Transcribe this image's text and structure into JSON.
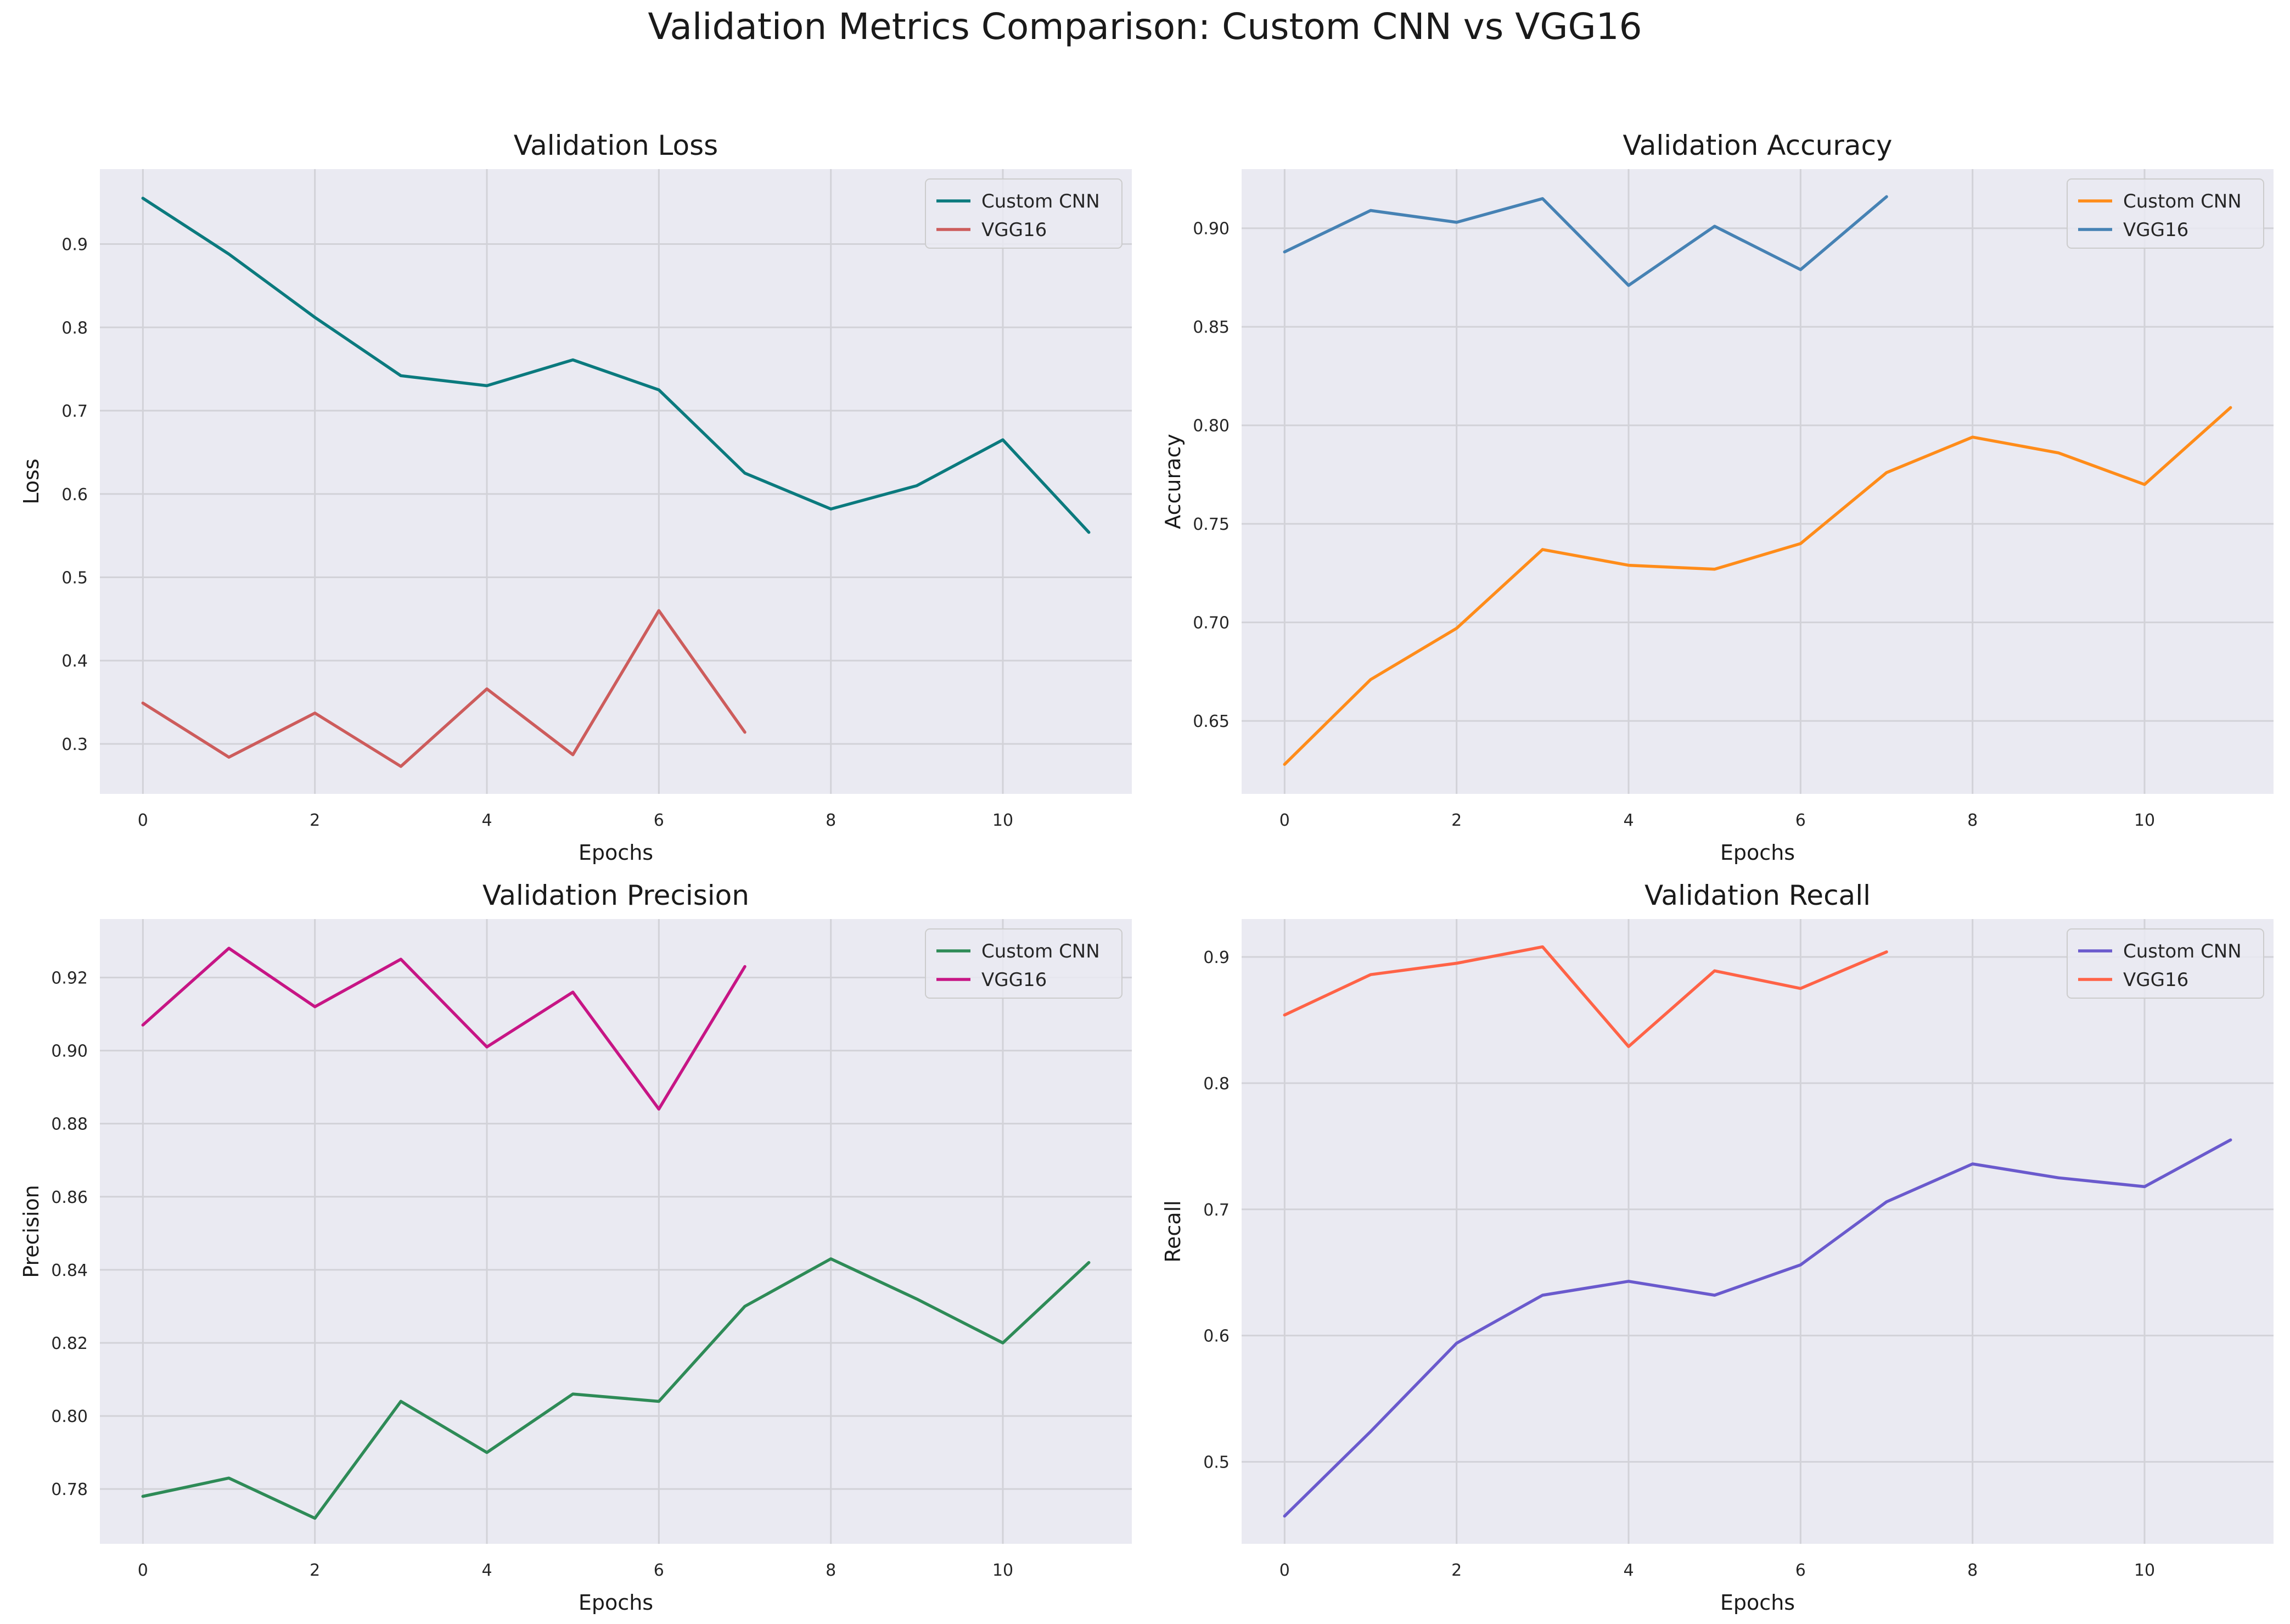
{
  "figure": {
    "title": "Validation Metrics Comparison: Custom CNN vs VGG16"
  },
  "chart_data": [
    {
      "type": "line",
      "title": "Validation Loss",
      "xlabel": "Epochs",
      "ylabel": "Loss",
      "xlim": [
        -0.5,
        11.5
      ],
      "ylim": [
        0.24,
        0.99
      ],
      "xticks": [
        0,
        2,
        4,
        6,
        8,
        10
      ],
      "yticks": [
        0.3,
        0.4,
        0.5,
        0.6,
        0.7,
        0.8,
        0.9
      ],
      "grid": true,
      "legend": "top-right",
      "series": [
        {
          "name": "Custom CNN",
          "color": "#0b7a7e",
          "x": [
            0,
            1,
            2,
            3,
            4,
            5,
            6,
            7,
            8,
            9,
            10,
            11
          ],
          "values": [
            0.955,
            0.888,
            0.812,
            0.742,
            0.73,
            0.761,
            0.725,
            0.625,
            0.582,
            0.61,
            0.665,
            0.554
          ]
        },
        {
          "name": "VGG16",
          "color": "#cd5c5c",
          "x": [
            0,
            1,
            2,
            3,
            4,
            5,
            6,
            7
          ],
          "values": [
            0.349,
            0.284,
            0.337,
            0.273,
            0.366,
            0.287,
            0.46,
            0.314
          ]
        }
      ]
    },
    {
      "type": "line",
      "title": "Validation Accuracy",
      "xlabel": "Epochs",
      "ylabel": "Accuracy",
      "xlim": [
        -0.5,
        11.5
      ],
      "ylim": [
        0.613,
        0.93
      ],
      "xticks": [
        0,
        2,
        4,
        6,
        8,
        10
      ],
      "yticks": [
        0.65,
        0.7,
        0.75,
        0.8,
        0.85,
        0.9
      ],
      "tick_format": 2,
      "grid": true,
      "legend": "top-right",
      "series": [
        {
          "name": "Custom CNN",
          "color": "#ff8c1a",
          "x": [
            0,
            1,
            2,
            3,
            4,
            5,
            6,
            7,
            8,
            9,
            10,
            11
          ],
          "values": [
            0.628,
            0.671,
            0.697,
            0.737,
            0.729,
            0.727,
            0.74,
            0.776,
            0.794,
            0.786,
            0.77,
            0.809
          ]
        },
        {
          "name": "VGG16",
          "color": "#4682b4",
          "x": [
            0,
            1,
            2,
            3,
            4,
            5,
            6,
            7
          ],
          "values": [
            0.888,
            0.909,
            0.903,
            0.915,
            0.871,
            0.901,
            0.879,
            0.916
          ]
        }
      ]
    },
    {
      "type": "line",
      "title": "Validation Precision",
      "xlabel": "Epochs",
      "ylabel": "Precision",
      "xlim": [
        -0.5,
        11.5
      ],
      "ylim": [
        0.765,
        0.936
      ],
      "xticks": [
        0,
        2,
        4,
        6,
        8,
        10
      ],
      "yticks": [
        0.78,
        0.8,
        0.82,
        0.84,
        0.86,
        0.88,
        0.9,
        0.92
      ],
      "tick_format": 2,
      "grid": true,
      "legend": "top-right",
      "series": [
        {
          "name": "Custom CNN",
          "color": "#2e8b57",
          "x": [
            0,
            1,
            2,
            3,
            4,
            5,
            6,
            7,
            8,
            9,
            10,
            11
          ],
          "values": [
            0.778,
            0.783,
            0.772,
            0.804,
            0.79,
            0.806,
            0.804,
            0.83,
            0.843,
            0.832,
            0.82,
            0.842
          ]
        },
        {
          "name": "VGG16",
          "color": "#c71585",
          "x": [
            0,
            1,
            2,
            3,
            4,
            5,
            6,
            7
          ],
          "values": [
            0.907,
            0.928,
            0.912,
            0.925,
            0.901,
            0.916,
            0.884,
            0.923
          ]
        }
      ]
    },
    {
      "type": "line",
      "title": "Validation Recall",
      "xlabel": "Epochs",
      "ylabel": "Recall",
      "xlim": [
        -0.5,
        11.5
      ],
      "ylim": [
        0.435,
        0.93
      ],
      "xticks": [
        0,
        2,
        4,
        6,
        8,
        10
      ],
      "yticks": [
        0.5,
        0.6,
        0.7,
        0.8,
        0.9
      ],
      "grid": true,
      "legend": "top-right",
      "series": [
        {
          "name": "Custom CNN",
          "color": "#6a5acd",
          "x": [
            0,
            1,
            2,
            3,
            4,
            5,
            6,
            7,
            8,
            9,
            10,
            11
          ],
          "values": [
            0.457,
            0.524,
            0.594,
            0.632,
            0.643,
            0.632,
            0.656,
            0.706,
            0.736,
            0.725,
            0.718,
            0.755
          ]
        },
        {
          "name": "VGG16",
          "color": "#ff6347",
          "x": [
            0,
            1,
            2,
            3,
            4,
            5,
            6,
            7
          ],
          "values": [
            0.854,
            0.886,
            0.895,
            0.908,
            0.829,
            0.889,
            0.875,
            0.904
          ]
        }
      ]
    }
  ]
}
